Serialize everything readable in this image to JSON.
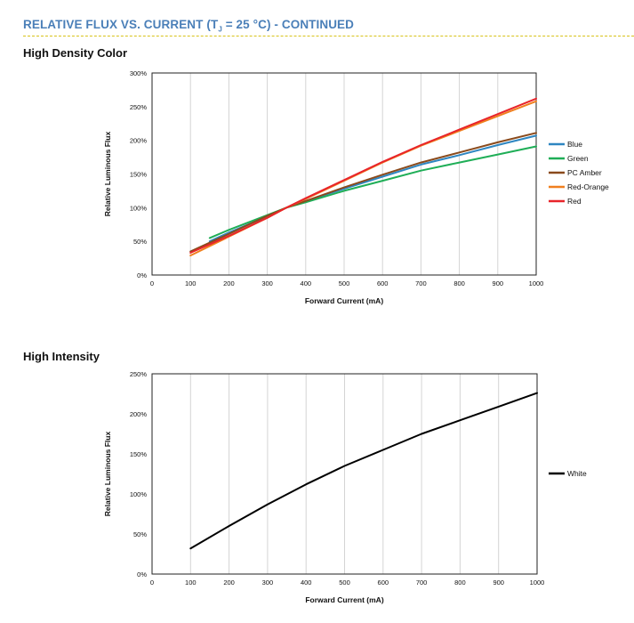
{
  "header": {
    "title_prefix": "RELATIVE FLUX VS. CURRENT (T",
    "title_sub": "J",
    "title_suffix": " = 25 °C) - CONTINUED"
  },
  "sections": [
    {
      "heading": "High Density Color"
    },
    {
      "heading": "High Intensity"
    }
  ],
  "chart_data": [
    {
      "type": "line",
      "xlabel": "Forward Current (mA)",
      "ylabel": "Relative Luminous Flux",
      "xlim": [
        0,
        1000
      ],
      "ylim": [
        0,
        300
      ],
      "xticks": [
        0,
        100,
        200,
        300,
        400,
        500,
        600,
        700,
        800,
        900,
        1000
      ],
      "yticks": [
        0,
        50,
        100,
        150,
        200,
        250,
        300
      ],
      "ytick_labels": [
        "0%",
        "50%",
        "100%",
        "150%",
        "200%",
        "250%",
        "300%"
      ],
      "grid": "vertical",
      "legend": "right",
      "series": [
        {
          "name": "Blue",
          "color": "#2e86c1",
          "x": [
            150,
            200,
            300,
            350,
            400,
            500,
            600,
            700,
            800,
            900,
            1000
          ],
          "y": [
            50,
            63,
            87,
            100,
            110,
            128,
            146,
            164,
            178,
            193,
            207
          ]
        },
        {
          "name": "Green",
          "color": "#1fae57",
          "x": [
            150,
            200,
            300,
            350,
            400,
            500,
            600,
            700,
            800,
            900,
            1000
          ],
          "y": [
            55,
            67,
            89,
            100,
            108,
            125,
            140,
            155,
            167,
            179,
            191
          ]
        },
        {
          "name": "PC Amber",
          "color": "#8a4a1c",
          "x": [
            100,
            200,
            300,
            350,
            400,
            500,
            600,
            700,
            800,
            900,
            1000
          ],
          "y": [
            35,
            61,
            88,
            100,
            110,
            130,
            149,
            167,
            182,
            197,
            211
          ]
        },
        {
          "name": "Red-Orange",
          "color": "#f07f1e",
          "x": [
            100,
            200,
            300,
            350,
            400,
            500,
            600,
            700,
            800,
            900,
            1000
          ],
          "y": [
            29,
            57,
            85,
            100,
            113,
            140,
            167,
            192,
            214,
            236,
            258
          ]
        },
        {
          "name": "Red",
          "color": "#e8242a",
          "x": [
            100,
            200,
            300,
            350,
            400,
            500,
            600,
            700,
            800,
            900,
            1000
          ],
          "y": [
            33,
            58,
            85,
            100,
            114,
            141,
            168,
            193,
            216,
            239,
            262
          ]
        }
      ]
    },
    {
      "type": "line",
      "xlabel": "Forward Current (mA)",
      "ylabel": "Relative Luminous Flux",
      "xlim": [
        0,
        1000
      ],
      "ylim": [
        0,
        250
      ],
      "xticks": [
        0,
        100,
        200,
        300,
        400,
        500,
        600,
        700,
        800,
        900,
        1000
      ],
      "yticks": [
        0,
        50,
        100,
        150,
        200,
        250
      ],
      "ytick_labels": [
        "0%",
        "50%",
        "100%",
        "150%",
        "200%",
        "250%"
      ],
      "grid": "vertical",
      "legend": "right",
      "series": [
        {
          "name": "White",
          "color": "#000000",
          "x": [
            100,
            200,
            300,
            400,
            500,
            600,
            700,
            800,
            900,
            1000
          ],
          "y": [
            32,
            60,
            87,
            112,
            135,
            155,
            175,
            192,
            209,
            226
          ]
        }
      ]
    }
  ]
}
